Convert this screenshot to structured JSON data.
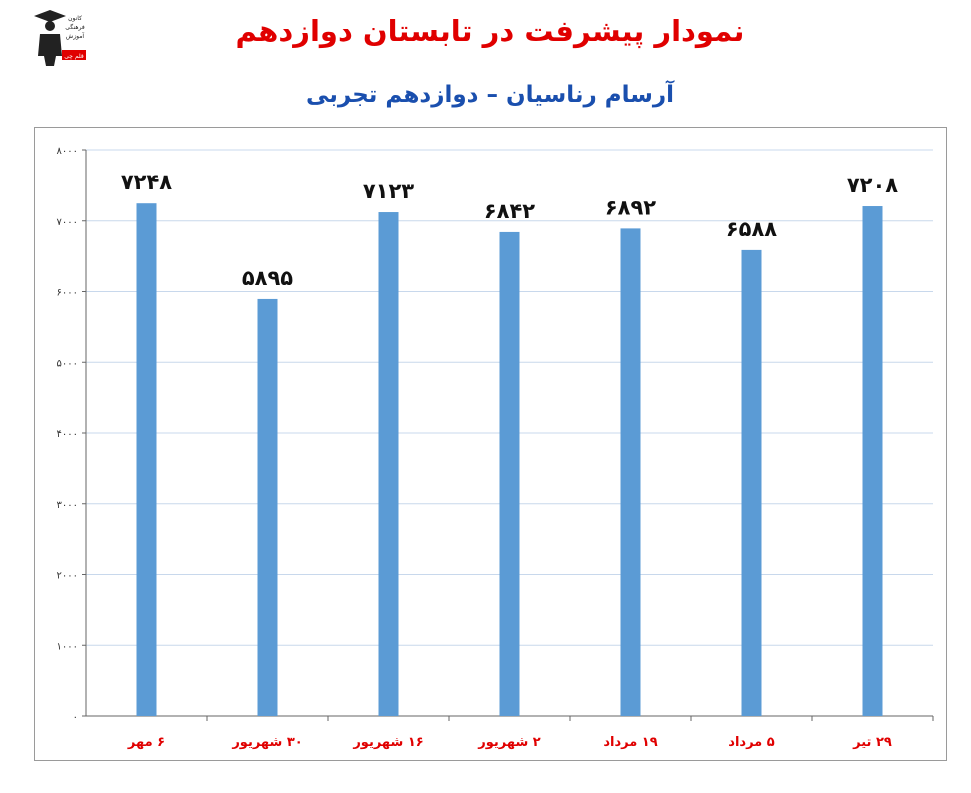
{
  "logo": {
    "icon": "graduate-figure-icon",
    "text_lines": [
      "کانون",
      "فرهنگی",
      "آموزش",
      "قلم چی"
    ]
  },
  "header": {
    "title": "نمودار پیشرفت در تابستان دوازدهم",
    "subtitle": "آرسام رناسیان – دوازدهم تجربی"
  },
  "colors": {
    "title": "#e00000",
    "subtitle": "#1a4fae",
    "bar": "#5b9bd5",
    "x_label": "#e00000",
    "gridline": "#c8d8ec"
  },
  "chart_data": {
    "type": "bar",
    "title": "",
    "xlabel": "",
    "ylabel": "",
    "categories": [
      "۲۹ تیر",
      "۵ مرداد",
      "۱۹ مرداد",
      "۲ شهریور",
      "۱۶ شهریور",
      "۳۰ شهریور",
      "۶ مهر"
    ],
    "values": [
      7208,
      6588,
      6892,
      6842,
      7123,
      5895,
      7248
    ],
    "value_labels": [
      "۷۲۰۸",
      "۶۵۸۸",
      "۶۸۹۲",
      "۶۸۴۲",
      "۷۱۲۳",
      "۵۸۹۵",
      "۷۲۴۸"
    ],
    "ylim": [
      0,
      8000
    ],
    "yticks": [
      0,
      1000,
      2000,
      3000,
      4000,
      5000,
      6000,
      7000,
      8000
    ],
    "ytick_labels": [
      "۰",
      "۱۰۰۰",
      "۲۰۰۰",
      "۳۰۰۰",
      "۴۰۰۰",
      "۵۰۰۰",
      "۶۰۰۰",
      "۷۰۰۰",
      "۸۰۰۰"
    ],
    "grid": true,
    "legend": "none"
  }
}
